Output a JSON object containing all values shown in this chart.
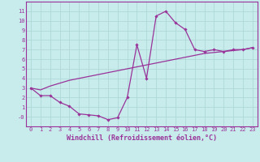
{
  "xlabel": "Windchill (Refroidissement éolien,°C)",
  "bg_color": "#c8ecec",
  "grid_color": "#b0d8d8",
  "line_color": "#993399",
  "line1_x": [
    0,
    1,
    2,
    3,
    4,
    5,
    6,
    7,
    8,
    9,
    10,
    11,
    12,
    13,
    14,
    15,
    16,
    17,
    18,
    19,
    20,
    21,
    22,
    23
  ],
  "line1_y": [
    3.0,
    2.2,
    2.2,
    1.5,
    1.1,
    0.3,
    0.2,
    0.1,
    -0.3,
    -0.1,
    2.0,
    7.5,
    4.0,
    10.5,
    11.0,
    9.8,
    9.1,
    7.0,
    6.8,
    7.0,
    6.8,
    7.0,
    7.0,
    7.2
  ],
  "line2_x": [
    0,
    1,
    2,
    3,
    4,
    5,
    6,
    7,
    8,
    9,
    10,
    11,
    12,
    13,
    14,
    15,
    16,
    17,
    18,
    19,
    20,
    21,
    22,
    23
  ],
  "line2_y": [
    3.0,
    2.8,
    3.2,
    3.5,
    3.8,
    4.0,
    4.2,
    4.4,
    4.6,
    4.8,
    5.0,
    5.2,
    5.4,
    5.6,
    5.8,
    6.0,
    6.2,
    6.4,
    6.6,
    6.7,
    6.8,
    6.9,
    7.0,
    7.2
  ],
  "xlim": [
    -0.5,
    23.5
  ],
  "ylim": [
    -1.0,
    12.0
  ],
  "xticks": [
    0,
    1,
    2,
    3,
    4,
    5,
    6,
    7,
    8,
    9,
    10,
    11,
    12,
    13,
    14,
    15,
    16,
    17,
    18,
    19,
    20,
    21,
    22,
    23
  ],
  "yticks": [
    0,
    1,
    2,
    3,
    4,
    5,
    6,
    7,
    8,
    9,
    10,
    11
  ],
  "ytick_labels": [
    "-0",
    "1",
    "2",
    "3",
    "4",
    "5",
    "6",
    "7",
    "8",
    "9",
    "10",
    "11"
  ],
  "tick_fontsize": 5.0,
  "xlabel_fontsize": 6.0
}
